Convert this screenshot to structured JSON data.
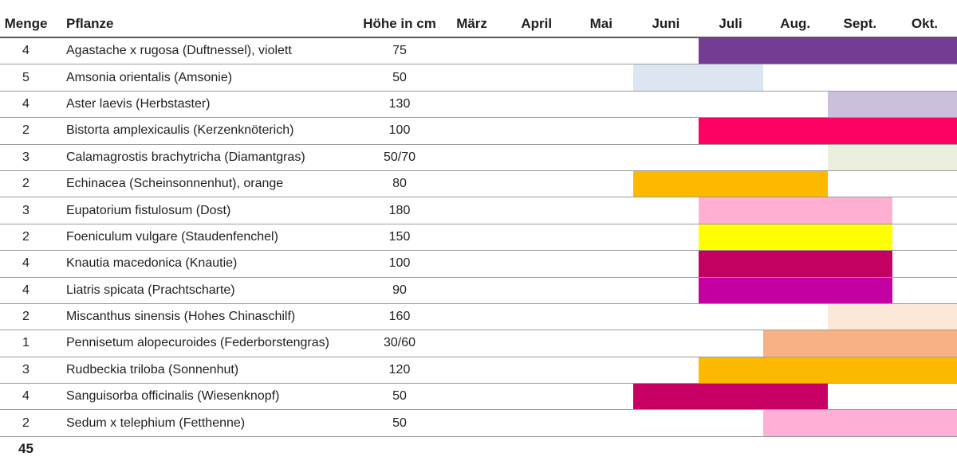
{
  "header": {
    "menge": "Menge",
    "pflanze": "Pflanze",
    "hoehe": "Höhe in cm"
  },
  "chart_data": {
    "type": "table",
    "description": "Pflanzliste mit Blühzeit-Balken (Gantt) je Monat",
    "columns": [
      "Menge",
      "Pflanze",
      "Höhe in cm"
    ],
    "month_columns": [
      "März",
      "April",
      "Mai",
      "Juni",
      "Juli",
      "Aug.",
      "Sept.",
      "Okt."
    ],
    "rows": [
      {
        "menge": "4",
        "pflanze": "Agastache x rugosa (Duftnessel), violett",
        "hoehe": "75",
        "bloom_from": "Juli",
        "bloom_to": "Okt.",
        "color": "#743C93"
      },
      {
        "menge": "5",
        "pflanze": "Amsonia orientalis (Amsonie)",
        "hoehe": "50",
        "bloom_from": "Juni",
        "bloom_to": "Juli",
        "color": "#DCE6F2"
      },
      {
        "menge": "4",
        "pflanze": "Aster laevis (Herbstaster)",
        "hoehe": "130",
        "bloom_from": "Sept.",
        "bloom_to": "Okt.",
        "color": "#CBC0DC"
      },
      {
        "menge": "2",
        "pflanze": "Bistorta amplexicaulis (Kerzenknöterich)",
        "hoehe": "100",
        "bloom_from": "Juli",
        "bloom_to": "Okt.",
        "color": "#FF0063"
      },
      {
        "menge": "3",
        "pflanze": "Calamagrostis brachytricha (Diamantgras)",
        "hoehe": "50/70",
        "bloom_from": "Sept.",
        "bloom_to": "Okt.",
        "color": "#EAEEDC"
      },
      {
        "menge": "2",
        "pflanze": "Echinacea (Scheinsonnenhut), orange",
        "hoehe": "80",
        "bloom_from": "Juni",
        "bloom_to": "Aug.",
        "color": "#FCB900"
      },
      {
        "menge": "3",
        "pflanze": "Eupatorium fistulosum (Dost)",
        "hoehe": "180",
        "bloom_from": "Juli",
        "bloom_to": "Sept.",
        "color": "#FFAFD2"
      },
      {
        "menge": "2",
        "pflanze": "Foeniculum vulgare (Staudenfenchel)",
        "hoehe": "150",
        "bloom_from": "Juli",
        "bloom_to": "Sept.",
        "color": "#FFFF00"
      },
      {
        "menge": "4",
        "pflanze": "Knautia macedonica (Knautie)",
        "hoehe": "100",
        "bloom_from": "Juli",
        "bloom_to": "Sept.",
        "color": "#C40060"
      },
      {
        "menge": "4",
        "pflanze": "Liatris spicata (Prachtscharte)",
        "hoehe": "90",
        "bloom_from": "Juli",
        "bloom_to": "Sept.",
        "color": "#C400A3"
      },
      {
        "menge": "2",
        "pflanze": "Miscanthus sinensis (Hohes Chinaschilf)",
        "hoehe": "160",
        "bloom_from": "Sept.",
        "bloom_to": "Okt.",
        "color": "#FBE8D9"
      },
      {
        "menge": "1",
        "pflanze": "Pennisetum alopecuroides (Federborstengras)",
        "hoehe": "30/60",
        "bloom_from": "Aug.",
        "bloom_to": "Okt.",
        "color": "#F7B183"
      },
      {
        "menge": "3",
        "pflanze": "Rudbeckia triloba (Sonnenhut)",
        "hoehe": "120",
        "bloom_from": "Juli",
        "bloom_to": "Okt.",
        "color": "#FCB900"
      },
      {
        "menge": "4",
        "pflanze": "Sanguisorba officinalis (Wiesenknopf)",
        "hoehe": "50",
        "bloom_from": "Juni",
        "bloom_to": "Aug.",
        "color": "#C90063"
      },
      {
        "menge": "2",
        "pflanze": "Sedum x telephium (Fetthenne)",
        "hoehe": "50",
        "bloom_from": "Aug.",
        "bloom_to": "Okt.",
        "color": "#FFAFD5"
      }
    ],
    "total_menge": "45"
  }
}
